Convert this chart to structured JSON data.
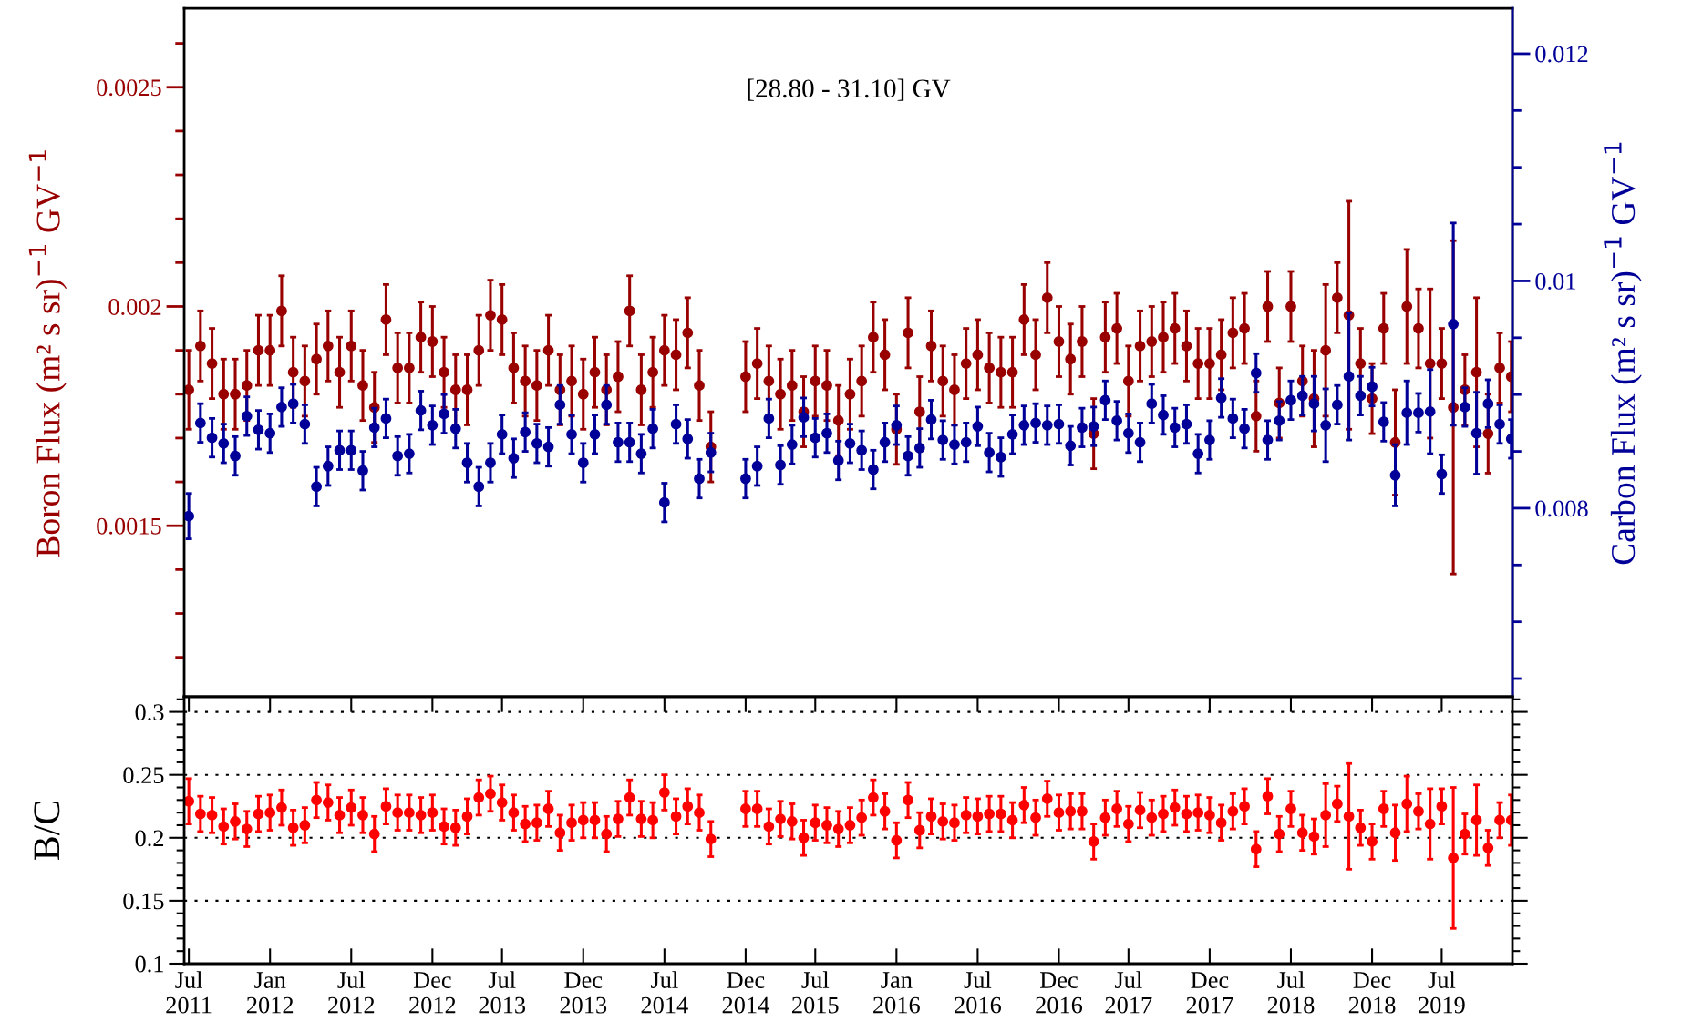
{
  "chart_data": [
    {
      "type": "scatter",
      "marker": "circle",
      "annotations": [
        "[28.80 - 31.10] GV"
      ],
      "ylabel": "Boron Flux (m² s sr)$^{−1}$ GV$^{−1}$",
      "y2label": "Carbon Flux (m² s sr)$^{−1}$ GV$^{−1}$",
      "ylim": [
        0.00111,
        0.00268
      ],
      "yticks": [
        0.0015,
        0.002,
        0.0025
      ],
      "y2lim": [
        0.00634,
        0.0124
      ],
      "y2ticks": [
        0.008,
        0.01,
        0.012
      ],
      "categories": [
        null,
        null,
        null,
        null,
        null,
        null,
        null,
        null,
        null,
        null,
        null,
        null,
        null,
        null,
        null,
        null,
        null,
        null,
        null,
        null,
        null,
        null,
        null,
        null,
        null,
        null,
        null,
        null,
        null,
        null,
        null,
        null,
        null,
        null,
        null,
        null,
        null,
        null,
        null,
        null,
        null,
        null,
        null,
        null,
        null,
        null,
        null,
        null,
        null,
        null,
        null,
        null,
        null,
        null,
        null,
        null,
        null,
        null,
        null,
        null,
        null,
        null,
        null,
        null,
        null,
        null,
        null,
        null,
        null,
        null,
        null,
        null,
        null,
        null,
        null,
        null,
        null,
        null,
        null,
        null,
        null,
        null,
        null,
        null,
        null,
        null,
        null,
        null,
        null,
        null,
        null,
        null,
        null,
        null,
        null,
        null,
        null,
        null,
        null,
        null,
        null,
        null,
        null,
        null,
        null,
        null,
        null,
        null,
        null,
        null,
        null,
        null,
        null,
        null,
        null
      ],
      "series": [
        {
          "color": "#990000",
          "axis": "y",
          "values": [
            0.00181,
            0.00191,
            0.00187,
            0.0018,
            0.0018,
            0.00182,
            0.0019,
            0.0019,
            0.00199,
            0.00185,
            0.00183,
            0.00188,
            0.00191,
            0.00185,
            0.00191,
            0.00182,
            0.00177,
            0.00197,
            0.00186,
            0.00186,
            0.00193,
            0.00192,
            0.00185,
            0.00181,
            0.00181,
            0.0019,
            0.00198,
            0.00197,
            0.00186,
            0.00183,
            0.00182,
            0.0019,
            0.00181,
            0.00183,
            0.0018,
            0.00185,
            0.00181,
            0.00184,
            0.00199,
            0.00181,
            0.00185,
            0.0019,
            0.00189,
            0.00194,
            0.00182,
            0.00168,
            null,
            null,
            0.00184,
            0.00187,
            0.00183,
            0.0018,
            0.00182,
            0.00176,
            0.00183,
            0.00182,
            0.00174,
            0.0018,
            0.00183,
            0.00193,
            0.00189,
            0.00172,
            0.00194,
            0.00176,
            0.00191,
            0.00183,
            0.00181,
            0.00187,
            0.00189,
            0.00186,
            0.00185,
            0.00185,
            0.00197,
            0.00189,
            0.00202,
            0.00192,
            0.00188,
            0.00192,
            0.00171,
            0.00193,
            0.00195,
            0.00183,
            0.00191,
            0.00192,
            0.00193,
            0.00195,
            0.00191,
            0.00187,
            0.00187,
            0.00189,
            0.00194,
            0.00195,
            0.00175,
            0.002,
            0.00178,
            0.002,
            0.00183,
            0.00179,
            0.0019,
            0.00202,
            0.00198,
            0.00187,
            0.00179,
            0.00195,
            0.00169,
            0.002,
            0.00195,
            0.00187,
            0.00187,
            0.00177,
            0.00181,
            0.00185,
            0.00171,
            0.00186,
            0.00184
          ],
          "errors": [
            9e-05,
            8e-05,
            8e-05,
            8e-05,
            8e-05,
            8e-05,
            8e-05,
            8e-05,
            8e-05,
            8e-05,
            8e-05,
            8e-05,
            8e-05,
            8e-05,
            8e-05,
            8e-05,
            8e-05,
            8e-05,
            8e-05,
            8e-05,
            8e-05,
            8e-05,
            8e-05,
            8e-05,
            8e-05,
            8e-05,
            8e-05,
            8e-05,
            8e-05,
            8e-05,
            8e-05,
            8e-05,
            8e-05,
            8e-05,
            8e-05,
            8e-05,
            8e-05,
            8e-05,
            8e-05,
            8e-05,
            8e-05,
            8e-05,
            8e-05,
            8e-05,
            8e-05,
            8e-05,
            null,
            null,
            8e-05,
            8e-05,
            8e-05,
            8e-05,
            8e-05,
            8e-05,
            8e-05,
            8e-05,
            8e-05,
            8e-05,
            8e-05,
            8e-05,
            8e-05,
            8e-05,
            8e-05,
            8e-05,
            8e-05,
            8e-05,
            8e-05,
            8e-05,
            8e-05,
            8e-05,
            8e-05,
            8e-05,
            8e-05,
            8e-05,
            8e-05,
            8e-05,
            8e-05,
            8e-05,
            8e-05,
            8e-05,
            8e-05,
            8e-05,
            8e-05,
            8e-05,
            8e-05,
            8e-05,
            8e-05,
            8e-05,
            8e-05,
            8e-05,
            8e-05,
            8e-05,
            8e-05,
            8e-05,
            8e-05,
            8e-05,
            8e-05,
            0.00011,
            0.00015,
            8e-05,
            0.00026,
            8e-05,
            8e-05,
            8e-05,
            0.00012,
            0.00013,
            9e-05,
            0.00017,
            8e-05,
            0.00038,
            8e-05,
            0.00017,
            9e-05,
            8e-05,
            8e-05
          ]
        },
        {
          "color": "#000099",
          "axis": "y2",
          "values": [
            0.00793,
            0.00875,
            0.00862,
            0.00857,
            0.00846,
            0.00881,
            0.00869,
            0.00866,
            0.00889,
            0.00892,
            0.00874,
            0.00819,
            0.00837,
            0.00851,
            0.00851,
            0.00833,
            0.00871,
            0.00879,
            0.00846,
            0.00848,
            0.00886,
            0.00873,
            0.00883,
            0.0087,
            0.0084,
            0.00819,
            0.0084,
            0.00865,
            0.00844,
            0.00867,
            0.00857,
            0.00854,
            0.00891,
            0.00865,
            0.0084,
            0.00865,
            0.00891,
            0.00858,
            0.00858,
            0.00848,
            0.0087,
            0.00805,
            0.00874,
            0.00861,
            0.00826,
            0.00849,
            null,
            null,
            0.00826,
            0.00837,
            0.00879,
            0.00838,
            0.00856,
            0.0088,
            0.00862,
            0.00866,
            0.00842,
            0.00857,
            0.00851,
            0.00834,
            0.00858,
            0.00873,
            0.00846,
            0.00853,
            0.00878,
            0.0086,
            0.00856,
            0.00858,
            0.00872,
            0.00849,
            0.00845,
            0.00865,
            0.00873,
            0.00875,
            0.00873,
            0.00874,
            0.00855,
            0.00871,
            0.00872,
            0.00895,
            0.00877,
            0.00866,
            0.00858,
            0.00892,
            0.00882,
            0.00871,
            0.00874,
            0.00848,
            0.0086,
            0.00897,
            0.00879,
            0.0087,
            0.00919,
            0.0086,
            0.00877,
            0.00895,
            0.00899,
            0.00892,
            0.00873,
            0.00891,
            0.00916,
            0.00899,
            0.00907,
            0.00876,
            0.00829,
            0.00884,
            0.00884,
            0.00885,
            0.0083,
            0.00962,
            0.00889,
            0.00866,
            0.00892,
            0.00874,
            0.00861
          ],
          "errors": [
            0.0002,
            0.00017,
            0.00017,
            0.00017,
            0.00017,
            0.00017,
            0.00017,
            0.00017,
            0.00017,
            0.00017,
            0.00017,
            0.00017,
            0.00017,
            0.00017,
            0.00017,
            0.00017,
            0.00017,
            0.00017,
            0.00017,
            0.00017,
            0.00017,
            0.00017,
            0.00017,
            0.00017,
            0.00017,
            0.00017,
            0.00017,
            0.00017,
            0.00017,
            0.00017,
            0.00017,
            0.00017,
            0.00017,
            0.00017,
            0.00017,
            0.00017,
            0.00017,
            0.00017,
            0.00017,
            0.00017,
            0.00017,
            0.00017,
            0.00017,
            0.00017,
            0.00017,
            0.00017,
            null,
            null,
            0.00017,
            0.00017,
            0.00017,
            0.00017,
            0.00017,
            0.00017,
            0.00017,
            0.00017,
            0.00017,
            0.00017,
            0.00017,
            0.00017,
            0.00017,
            0.00017,
            0.00017,
            0.00017,
            0.00017,
            0.00017,
            0.00017,
            0.00017,
            0.00017,
            0.00017,
            0.00017,
            0.00017,
            0.00017,
            0.00017,
            0.00017,
            0.00017,
            0.00017,
            0.00017,
            0.00017,
            0.00017,
            0.00017,
            0.00017,
            0.00017,
            0.00017,
            0.00017,
            0.00017,
            0.00017,
            0.00017,
            0.00017,
            0.00017,
            0.00017,
            0.00017,
            0.00017,
            0.00017,
            0.00017,
            0.00017,
            0.00017,
            0.00024,
            0.00032,
            0.00017,
            0.00056,
            0.00017,
            0.00017,
            0.00017,
            0.00027,
            0.00028,
            0.00017,
            0.00037,
            0.00017,
            0.00089,
            0.00017,
            0.00036,
            0.00021,
            0.00017,
            0.00017
          ]
        }
      ]
    },
    {
      "type": "scatter",
      "marker": "circle",
      "grid": "y",
      "color": "#ff0000",
      "ylabel": "B/C",
      "ylim": [
        0.1,
        0.312
      ],
      "yticks": [
        0.1,
        0.15,
        0.2,
        0.25,
        0.3
      ],
      "categories": [
        "Jul\n2011",
        null,
        null,
        null,
        null,
        null,
        null,
        "Jan\n2012",
        null,
        null,
        null,
        null,
        null,
        null,
        "Jul\n2012",
        null,
        null,
        null,
        null,
        null,
        null,
        "Dec\n2012",
        null,
        null,
        null,
        null,
        null,
        "Jul\n2013",
        null,
        null,
        null,
        null,
        null,
        null,
        "Dec\n2013",
        null,
        null,
        null,
        null,
        null,
        null,
        "Jul\n2014",
        null,
        null,
        null,
        null,
        null,
        null,
        "Dec\n2014",
        null,
        null,
        null,
        null,
        null,
        "Jul\n2015",
        null,
        null,
        null,
        null,
        null,
        null,
        "Jan\n2016",
        null,
        null,
        null,
        null,
        null,
        null,
        "Jul\n2016",
        null,
        null,
        null,
        null,
        null,
        null,
        "Dec\n2016",
        null,
        null,
        null,
        null,
        null,
        "Jul\n2017",
        null,
        null,
        null,
        null,
        null,
        null,
        "Dec\n2017",
        null,
        null,
        null,
        null,
        null,
        null,
        "Jul\n2018",
        null,
        null,
        null,
        null,
        null,
        null,
        "Dec\n2018",
        null,
        null,
        null,
        null,
        null,
        "Jul\n2019",
        null,
        null,
        null,
        null,
        null,
        null
      ],
      "values": [
        0.229,
        0.219,
        0.218,
        0.209,
        0.213,
        0.207,
        0.219,
        0.22,
        0.224,
        0.208,
        0.21,
        0.23,
        0.228,
        0.218,
        0.224,
        0.218,
        0.203,
        0.225,
        0.22,
        0.22,
        0.218,
        0.22,
        0.209,
        0.208,
        0.217,
        0.232,
        0.235,
        0.228,
        0.22,
        0.211,
        0.212,
        0.223,
        0.204,
        0.212,
        0.214,
        0.214,
        0.203,
        0.215,
        0.232,
        0.215,
        0.214,
        0.236,
        0.217,
        0.225,
        0.22,
        0.199,
        null,
        null,
        0.223,
        0.223,
        0.209,
        0.215,
        0.213,
        0.2,
        0.212,
        0.21,
        0.207,
        0.21,
        0.216,
        0.232,
        0.221,
        0.198,
        0.23,
        0.206,
        0.217,
        0.213,
        0.212,
        0.218,
        0.217,
        0.219,
        0.219,
        0.214,
        0.226,
        0.216,
        0.231,
        0.22,
        0.221,
        0.221,
        0.197,
        0.216,
        0.223,
        0.211,
        0.222,
        0.216,
        0.219,
        0.224,
        0.219,
        0.22,
        0.218,
        0.212,
        0.221,
        0.225,
        0.191,
        0.233,
        0.203,
        0.223,
        0.204,
        0.201,
        0.218,
        0.227,
        0.217,
        0.208,
        0.197,
        0.223,
        0.204,
        0.227,
        0.221,
        0.211,
        0.225,
        0.184,
        0.203,
        0.214,
        0.192,
        0.214,
        0.214
      ],
      "errors": [
        0.018,
        0.014,
        0.014,
        0.014,
        0.014,
        0.014,
        0.014,
        0.014,
        0.014,
        0.014,
        0.014,
        0.014,
        0.014,
        0.014,
        0.014,
        0.014,
        0.014,
        0.014,
        0.014,
        0.014,
        0.014,
        0.014,
        0.014,
        0.014,
        0.014,
        0.014,
        0.014,
        0.014,
        0.014,
        0.014,
        0.014,
        0.014,
        0.014,
        0.014,
        0.014,
        0.014,
        0.014,
        0.014,
        0.014,
        0.014,
        0.014,
        0.014,
        0.014,
        0.014,
        0.014,
        0.014,
        null,
        null,
        0.014,
        0.014,
        0.014,
        0.014,
        0.014,
        0.014,
        0.014,
        0.014,
        0.014,
        0.014,
        0.014,
        0.014,
        0.014,
        0.014,
        0.014,
        0.014,
        0.014,
        0.014,
        0.014,
        0.014,
        0.014,
        0.014,
        0.014,
        0.014,
        0.014,
        0.014,
        0.014,
        0.014,
        0.014,
        0.014,
        0.014,
        0.014,
        0.014,
        0.014,
        0.014,
        0.014,
        0.014,
        0.014,
        0.014,
        0.014,
        0.014,
        0.014,
        0.014,
        0.014,
        0.014,
        0.014,
        0.014,
        0.014,
        0.014,
        0.014,
        0.025,
        0.014,
        0.042,
        0.014,
        0.014,
        0.014,
        0.022,
        0.022,
        0.014,
        0.028,
        0.014,
        0.056,
        0.016,
        0.028,
        0.014,
        0.014,
        0.02
      ]
    }
  ]
}
